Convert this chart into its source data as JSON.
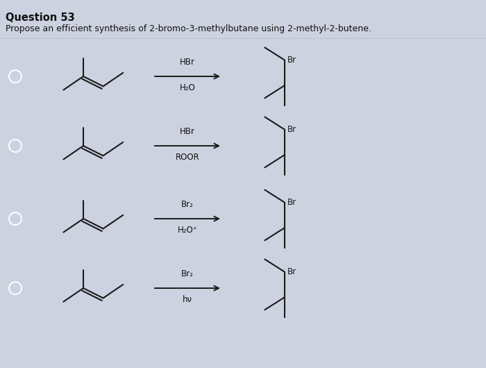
{
  "title": "Question 53",
  "subtitle": "Propose an efficient synthesis of 2-bromo-3-methylbutane using 2-methyl-2-butene.",
  "background_color": "#cdd2e0",
  "text_color": "#111111",
  "rows": [
    {
      "reagent_top": "HBr",
      "reagent_bottom": "H₂O"
    },
    {
      "reagent_top": "HBr",
      "reagent_bottom": "ROOR"
    },
    {
      "reagent_top": "Br₂",
      "reagent_bottom": "H₂O⁺"
    },
    {
      "reagent_top": "Br₂",
      "reagent_bottom": "hν"
    }
  ],
  "mol_color": "#1a1a1a",
  "figsize": [
    7.0,
    5.3
  ],
  "dpi": 100
}
